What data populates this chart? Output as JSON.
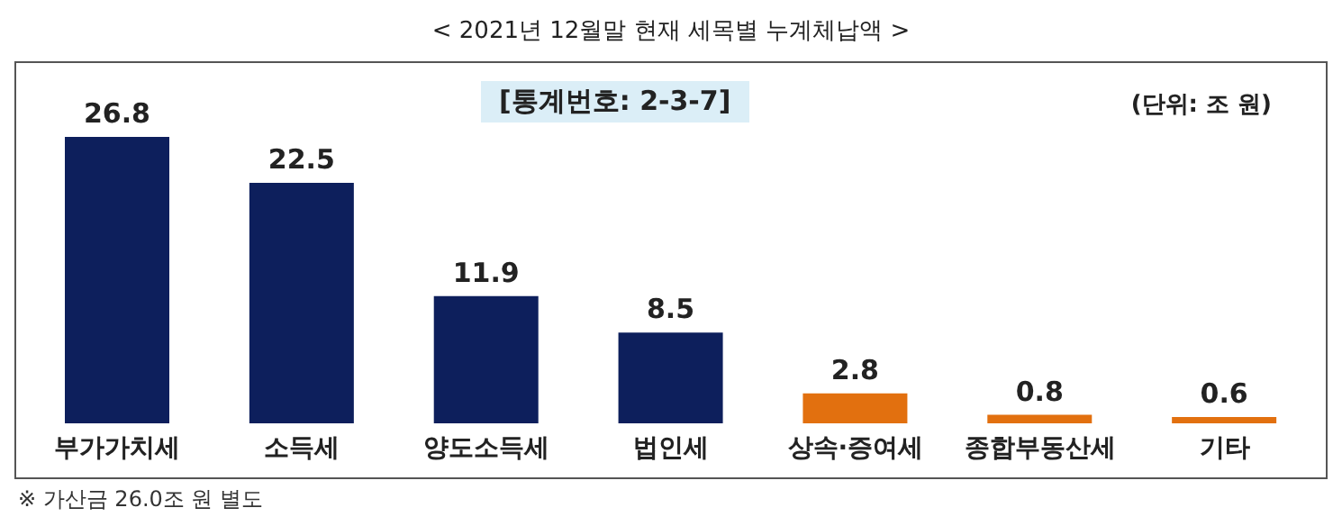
{
  "chart_data": {
    "type": "bar",
    "title": "< 2021년 12월말 현재 세목별 누계체납액 >",
    "categories": [
      "부가가치세",
      "소득세",
      "양도소득세",
      "법인세",
      "상속·증여세",
      "종합부동산세",
      "기타"
    ],
    "values": [
      26.8,
      22.5,
      11.9,
      8.5,
      2.8,
      0.8,
      0.6
    ],
    "colors": [
      "#0d1f5c",
      "#0d1f5c",
      "#0d1f5c",
      "#0d1f5c",
      "#e2700f",
      "#e2700f",
      "#e2700f"
    ],
    "data_labels": true,
    "annotations": [
      "[통계번호: 2-3-7]",
      "(단위: 조 원)",
      "※ 가산금 26.0조 원 별도"
    ]
  }
}
